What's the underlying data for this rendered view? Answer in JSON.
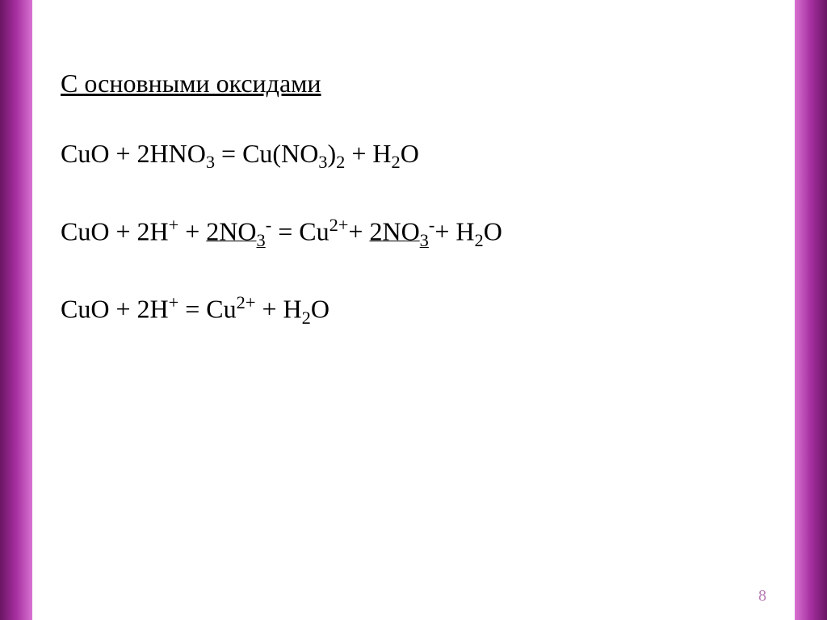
{
  "slide": {
    "heading": "С основными оксидами",
    "equations": {
      "eq1_l1": "CuO + 2HNO",
      "eq1_s1": "3",
      "eq1_l2": " = Cu(NO",
      "eq1_s2": "3",
      "eq1_l3": ")",
      "eq1_s3": "2",
      "eq1_l4": " + H",
      "eq1_s4": "2",
      "eq1_l5": "O",
      "eq2_l1": "CuO + 2H",
      "eq2_p1": "+",
      "eq2_l2": " + ",
      "eq2_u1": "2NO",
      "eq2_s1": "3",
      "eq2_p2": "-",
      "eq2_l3": " = Cu",
      "eq2_p3": "2+",
      "eq2_l4": "+ ",
      "eq2_u2": "2NO",
      "eq2_s2": "3",
      "eq2_p4": "-",
      "eq2_l5": "+ H",
      "eq2_s3": "2",
      "eq2_l6": "O",
      "eq3_l1": "CuO + 2H",
      "eq3_p1": "+",
      "eq3_l2": " = Cu",
      "eq3_p2": "2+",
      "eq3_l3": " + H",
      "eq3_s1": "2",
      "eq3_l4": "O"
    },
    "page_number": "8"
  },
  "style": {
    "background_color": "#ffffff",
    "text_color": "#000000",
    "border_gradient_start": "#6a1564",
    "border_gradient_mid": "#a62fa0",
    "border_gradient_end": "#d772d1",
    "page_num_color": "#b97db5",
    "heading_fontsize": 32,
    "equation_fontsize": 32,
    "font_family": "Times New Roman"
  }
}
